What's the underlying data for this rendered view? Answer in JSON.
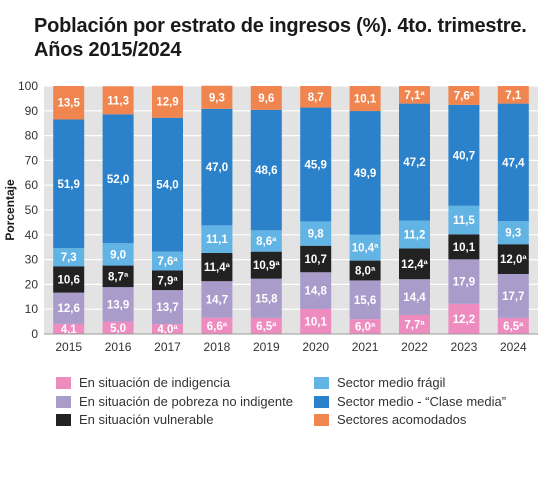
{
  "title_line1": "Población por estrato de ingresos (%). 4to. trimestre.",
  "title_line2": "Años 2015/2024",
  "chart_data": {
    "type": "bar",
    "stacked": true,
    "categories": [
      "2015",
      "2016",
      "2017",
      "2018",
      "2019",
      "2020",
      "2021",
      "2022",
      "2023",
      "2024"
    ],
    "ylabel": "Porcentaje",
    "xlabel": "",
    "ylim": [
      0,
      100
    ],
    "yticks": [
      0,
      10,
      20,
      30,
      40,
      50,
      60,
      70,
      80,
      90,
      100
    ],
    "grid": true,
    "legend_position": "bottom",
    "series": [
      {
        "name": "En situación de indigencia",
        "color": "#ee8cc0",
        "text_color": "#ffffff",
        "values": [
          4.1,
          5.0,
          4.0,
          6.6,
          6.5,
          10.1,
          6.0,
          7.7,
          12.2,
          6.5
        ],
        "labels": [
          "4,1",
          "5,0",
          "4,0ª",
          "6,6ª",
          "6,5ª",
          "10,1",
          "6,0ª",
          "7,7ª",
          "12,2",
          "6,5ª"
        ]
      },
      {
        "name": "En situación de pobreza no indigente",
        "color": "#a99ccb",
        "text_color": "#ffffff",
        "values": [
          12.6,
          13.9,
          13.7,
          14.7,
          15.8,
          14.8,
          15.6,
          14.4,
          17.9,
          17.7
        ],
        "labels": [
          "12,6",
          "13,9",
          "13,7",
          "14,7",
          "15,8",
          "14,8",
          "15,6",
          "14,4",
          "17,9",
          "17,7"
        ]
      },
      {
        "name": "En situación vulnerable",
        "color": "#222222",
        "text_color": "#ffffff",
        "values": [
          10.6,
          8.7,
          7.9,
          11.4,
          10.9,
          10.7,
          8.0,
          12.4,
          10.1,
          12.0
        ],
        "labels": [
          "10,6",
          "8,7ª",
          "7,9ª",
          "11,4ª",
          "10,9ª",
          "10,7",
          "8,0ª",
          "12,4ª",
          "10,1",
          "12,0ª"
        ]
      },
      {
        "name": "Sector medio frágil",
        "color": "#62b4e5",
        "text_color": "#ffffff",
        "values": [
          7.3,
          9.0,
          7.6,
          11.1,
          8.6,
          9.8,
          10.4,
          11.2,
          11.5,
          9.3
        ],
        "labels": [
          "7,3",
          "9,0",
          "7,6ª",
          "11,1",
          "8,6ª",
          "9,8",
          "10,4ª",
          "11,2",
          "11,5",
          "9,3"
        ]
      },
      {
        "name": "Sector medio - “Clase media”",
        "color": "#2b82cb",
        "text_color": "#ffffff",
        "values": [
          51.9,
          52.0,
          54.0,
          47.0,
          48.6,
          45.9,
          49.9,
          47.2,
          40.7,
          47.4
        ],
        "labels": [
          "51,9",
          "52,0",
          "54,0",
          "47,0",
          "48,6",
          "45,9",
          "49,9",
          "47,2",
          "40,7",
          "47,4"
        ]
      },
      {
        "name": "Sectores acomodados",
        "color": "#f0854f",
        "text_color": "#ffffff",
        "values": [
          13.5,
          11.3,
          12.9,
          9.3,
          9.6,
          8.7,
          10.1,
          7.1,
          7.6,
          7.1
        ],
        "labels": [
          "13,5",
          "11,3",
          "12,9",
          "9,3",
          "9,6",
          "8,7",
          "10,1",
          "7,1ª",
          "7,6ª",
          "7,1"
        ]
      }
    ]
  },
  "legend": {
    "col1": [
      "En situación de indigencia",
      "En situación de pobreza no indigente",
      "En situación vulnerable"
    ],
    "col2": [
      "Sector medio frágil",
      "Sector medio - “Clase media”",
      "Sectores acomodados"
    ]
  },
  "colors": {
    "indigencia": "#ee8cc0",
    "pobreza": "#a99ccb",
    "vulnerable": "#222222",
    "medio_fragil": "#62b4e5",
    "clase_media": "#2b82cb",
    "acomodados": "#f0854f",
    "background": "#e3e3e3",
    "grid": "#ffffff"
  }
}
